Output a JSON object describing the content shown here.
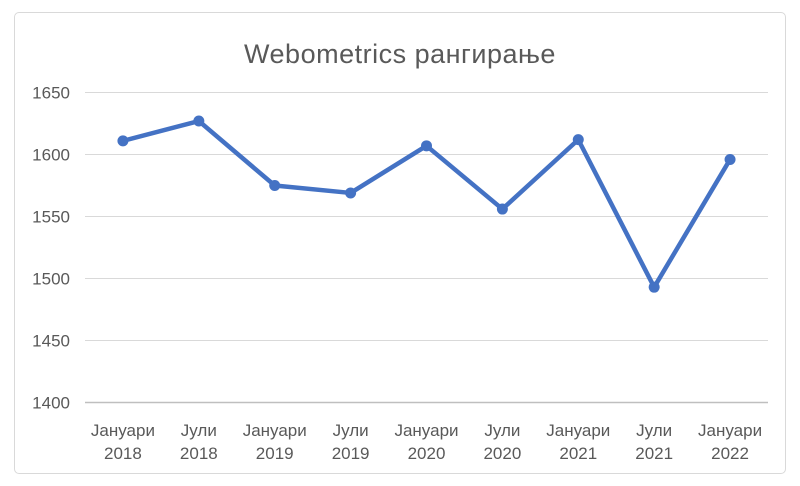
{
  "chart_data": {
    "type": "line",
    "title": "Webometrics рангирање",
    "categories": [
      "Јануари 2018",
      "Јули 2018",
      "Јануари 2019",
      "Јули 2019",
      "Јануари 2020",
      "Јули 2020",
      "Јануари 2021",
      "Јули 2021",
      "Јануари 2022"
    ],
    "values": [
      1611,
      1627,
      1575,
      1569,
      1607,
      1556,
      1612,
      1493,
      1596
    ],
    "ylim": [
      1400,
      1650
    ],
    "y_ticks": [
      1650,
      1600,
      1550,
      1500,
      1450,
      1400
    ],
    "grid": true,
    "legend": "none",
    "colors": {
      "series": "#4472C4",
      "gridline": "#D9D9D9",
      "axis_line": "#BFBFBF",
      "tick_label": "#595959",
      "title": "#595959",
      "background": "#FFFFFF",
      "frame_border": "#D9D9D9"
    }
  }
}
